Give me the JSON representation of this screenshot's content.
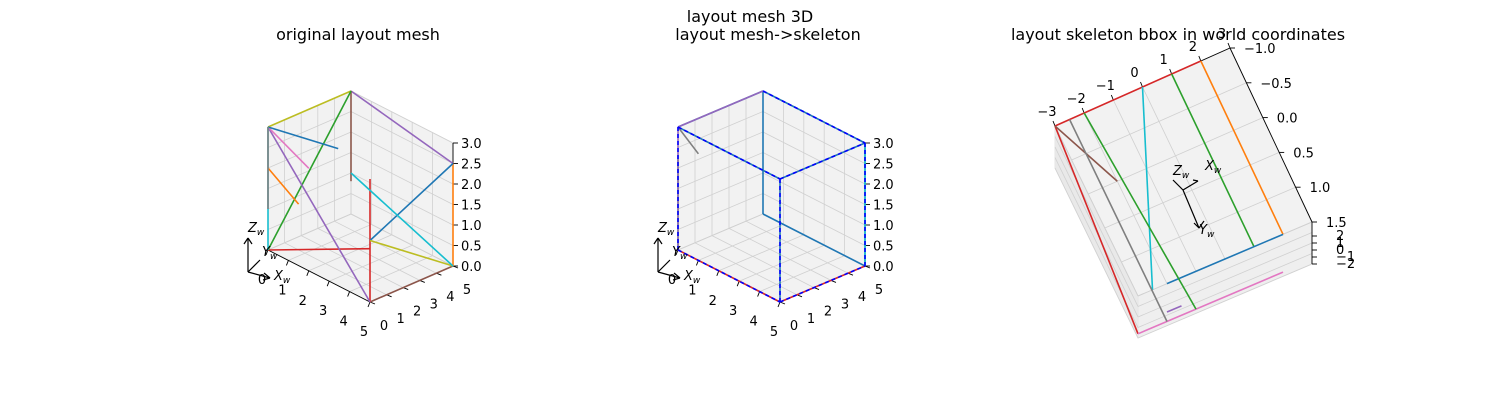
{
  "figure_title": "layout mesh 3D",
  "colors": {
    "blue": "#1f77b4",
    "orange": "#ff7f0e",
    "green": "#2ca02c",
    "red": "#d62728",
    "purple": "#9467bd",
    "brown": "#8c564b",
    "pink": "#e377c2",
    "gray": "#7f7f7f",
    "olive": "#bcbd22",
    "cyan": "#17becf",
    "dashed_blue": "#0000ff",
    "pane": "#f2f2f2"
  },
  "chart_data": [
    {
      "type": "wireframe-3d",
      "title": "original layout mesh",
      "xticks": [
        "0",
        "1",
        "2",
        "3",
        "4",
        "5"
      ],
      "yticks": [
        "0",
        "1",
        "2",
        "3",
        "4",
        "5"
      ],
      "zticks": [
        "0.0",
        "0.5",
        "1.0",
        "1.5",
        "2.0",
        "2.5",
        "3.0"
      ],
      "xlim": [
        0,
        5
      ],
      "ylim": [
        0,
        5
      ],
      "zlim": [
        0,
        3
      ],
      "frame_labels": [
        "Z_w",
        "Y_w",
        "X_w"
      ],
      "frame_label_text": {
        "z": "Z",
        "y": "Y",
        "x": "X",
        "sub": "w"
      },
      "segments": [
        {
          "color": "olive",
          "p": [
            [
              0,
              0,
              3
            ],
            [
              0,
              5,
              3
            ]
          ]
        },
        {
          "color": "purple",
          "p": [
            [
              0,
              5,
              3
            ],
            [
              5,
              5,
              2.5
            ]
          ]
        },
        {
          "color": "orange",
          "p": [
            [
              5,
              5,
              2.5
            ],
            [
              5,
              5,
              0
            ]
          ]
        },
        {
          "color": "brown",
          "p": [
            [
              5,
              5,
              0
            ],
            [
              5,
              0,
              0
            ]
          ]
        },
        {
          "color": "red",
          "p": [
            [
              5,
              0,
              0
            ],
            [
              5,
              0,
              3
            ]
          ]
        },
        {
          "color": "red",
          "p": [
            [
              0,
              0,
              0
            ],
            [
              5,
              0,
              1.3
            ]
          ]
        },
        {
          "color": "blue",
          "p": [
            [
              5,
              0,
              1.5
            ],
            [
              5,
              5,
              2.5
            ]
          ]
        },
        {
          "color": "brown",
          "p": [
            [
              0,
              5,
              3
            ],
            [
              0,
              5,
              0.8
            ]
          ]
        },
        {
          "color": "green",
          "p": [
            [
              0,
              0,
              0
            ],
            [
              0,
              5,
              3
            ]
          ]
        },
        {
          "color": "olive",
          "p": [
            [
              5,
              0,
              1.5
            ],
            [
              5,
              5,
              0
            ]
          ]
        },
        {
          "color": "cyan",
          "p": [
            [
              5,
              5,
              0
            ],
            [
              0,
              5,
              1.0
            ]
          ]
        },
        {
          "color": "purple",
          "p": [
            [
              5,
              0,
              0
            ],
            [
              0,
              0,
              3
            ]
          ]
        },
        {
          "color": "pink",
          "p": [
            [
              0,
              0,
              3
            ],
            [
              2,
              0,
              2.5
            ]
          ]
        },
        {
          "color": "blue",
          "p": [
            [
              0,
              0,
              3
            ],
            [
              1,
              3,
              2.2
            ]
          ]
        },
        {
          "color": "cyan",
          "p": [
            [
              0,
              0,
              3
            ],
            [
              0,
              0,
              0
            ]
          ]
        },
        {
          "color": "orange",
          "p": [
            [
              0,
              0,
              2
            ],
            [
              1.5,
              0,
              1.5
            ]
          ]
        },
        {
          "color": "gray",
          "p": [
            [
              0,
              0,
              3
            ],
            [
              0,
              0,
              1
            ]
          ]
        }
      ]
    },
    {
      "type": "wireframe-3d",
      "title": "layout mesh->skeleton",
      "xticks": [
        "0",
        "1",
        "2",
        "3",
        "4",
        "5"
      ],
      "yticks": [
        "0",
        "1",
        "2",
        "3",
        "4",
        "5"
      ],
      "zticks": [
        "0.0",
        "0.5",
        "1.0",
        "1.5",
        "2.0",
        "2.5",
        "3.0"
      ],
      "xlim": [
        0,
        5
      ],
      "ylim": [
        0,
        5
      ],
      "zlim": [
        0,
        3
      ],
      "frame_labels": [
        "Z_w",
        "Y_w",
        "X_w"
      ],
      "frame_label_text": {
        "z": "Z",
        "y": "Y",
        "x": "X",
        "sub": "w"
      },
      "segments": [
        {
          "color": "blue",
          "p": [
            [
              0,
              0,
              3
            ],
            [
              5,
              0,
              3
            ]
          ]
        },
        {
          "color": "blue",
          "p": [
            [
              0,
              0,
              3
            ],
            [
              0,
              5,
              3
            ]
          ]
        },
        {
          "color": "blue",
          "p": [
            [
              5,
              0,
              3
            ],
            [
              5,
              5,
              3
            ]
          ]
        },
        {
          "color": "blue",
          "p": [
            [
              0,
              5,
              3
            ],
            [
              5,
              5,
              3
            ]
          ]
        },
        {
          "color": "blue",
          "p": [
            [
              5,
              0,
              0
            ],
            [
              5,
              0,
              3
            ]
          ]
        },
        {
          "color": "blue",
          "p": [
            [
              5,
              5,
              0
            ],
            [
              5,
              5,
              3
            ]
          ]
        },
        {
          "color": "blue",
          "p": [
            [
              0,
              5,
              0
            ],
            [
              0,
              5,
              3
            ]
          ]
        },
        {
          "color": "blue",
          "p": [
            [
              0,
              5,
              0
            ],
            [
              5,
              5,
              0
            ]
          ]
        },
        {
          "color": "red",
          "p": [
            [
              0,
              0,
              0
            ],
            [
              5,
              0,
              0
            ]
          ]
        },
        {
          "color": "red",
          "p": [
            [
              5,
              0,
              0
            ],
            [
              5,
              5,
              0
            ]
          ]
        },
        {
          "color": "green",
          "p": [
            [
              0,
              0,
              0
            ],
            [
              0,
              0,
              2.3
            ]
          ]
        },
        {
          "color": "gray",
          "p": [
            [
              0,
              0,
              3
            ],
            [
              1.0,
              0,
              2.6
            ]
          ]
        },
        {
          "color": "purple",
          "p": [
            [
              0,
              0,
              0
            ],
            [
              0,
              0,
              3
            ]
          ]
        },
        {
          "color": "purple",
          "p": [
            [
              0,
              0,
              3
            ],
            [
              0,
              5,
              3
            ]
          ]
        },
        {
          "color": "cyan",
          "p": [
            [
              5,
              5,
              0
            ],
            [
              5,
              5,
              3
            ]
          ]
        },
        {
          "color": "dashed_blue",
          "dash": true,
          "p": [
            [
              0,
              0,
              0
            ],
            [
              5,
              0,
              0
            ]
          ]
        },
        {
          "color": "dashed_blue",
          "dash": true,
          "p": [
            [
              5,
              0,
              0
            ],
            [
              5,
              5,
              0
            ]
          ]
        },
        {
          "color": "dashed_blue",
          "dash": true,
          "p": [
            [
              0,
              0,
              3
            ],
            [
              5,
              0,
              3
            ]
          ]
        },
        {
          "color": "dashed_blue",
          "dash": true,
          "p": [
            [
              5,
              0,
              3
            ],
            [
              5,
              5,
              3
            ]
          ]
        },
        {
          "color": "dashed_blue",
          "dash": true,
          "p": [
            [
              0,
              5,
              3
            ],
            [
              5,
              5,
              3
            ]
          ]
        },
        {
          "color": "dashed_blue",
          "dash": true,
          "p": [
            [
              5,
              0,
              0
            ],
            [
              5,
              0,
              3
            ]
          ]
        },
        {
          "color": "dashed_blue",
          "dash": true,
          "p": [
            [
              5,
              5,
              0
            ],
            [
              5,
              5,
              3
            ]
          ]
        },
        {
          "color": "dashed_blue",
          "dash": true,
          "p": [
            [
              0,
              0,
              0
            ],
            [
              0,
              0,
              3
            ]
          ]
        }
      ]
    },
    {
      "type": "wireframe-3d",
      "title": "layout skeleton bbox in world coordinates",
      "xticks": [
        "−3",
        "−2",
        "−1",
        "0",
        "1",
        "2",
        "3"
      ],
      "yticks": [
        "−1.0",
        "−0.5",
        "0.0",
        "0.5",
        "1.0",
        "1.5"
      ],
      "zticks": [
        "2",
        "1",
        "0",
        "−1",
        "−2"
      ],
      "xlim": [
        -3,
        3
      ],
      "ylim": [
        -1,
        1.5
      ],
      "zlim": [
        -2,
        2
      ],
      "frame_labels": [
        "Z_w",
        "X_w",
        "Y_w"
      ],
      "frame_label_text": {
        "z": "Z",
        "y": "Y",
        "x": "X",
        "sub": "w"
      },
      "segments": [
        {
          "color": "red",
          "p": [
            [
              -3,
              -1,
              2
            ],
            [
              2,
              -1,
              2
            ]
          ]
        },
        {
          "color": "orange",
          "p": [
            [
              2,
              -1,
              2
            ],
            [
              2,
              1.5,
              2
            ]
          ]
        },
        {
          "color": "green",
          "p": [
            [
              1,
              -1,
              2
            ],
            [
              1,
              1.5,
              2
            ]
          ]
        },
        {
          "color": "cyan",
          "p": [
            [
              0,
              -1,
              2
            ],
            [
              -2.5,
              1.5,
              2
            ]
          ]
        },
        {
          "color": "blue",
          "p": [
            [
              2,
              1.5,
              2
            ],
            [
              -2,
              1.5,
              2
            ]
          ]
        },
        {
          "color": "red",
          "p": [
            [
              -3,
              -1,
              2
            ],
            [
              -3,
              1.5,
              -2
            ]
          ]
        },
        {
          "color": "pink",
          "p": [
            [
              -3,
              1.5,
              -2
            ],
            [
              2,
              1.5,
              -2
            ]
          ]
        },
        {
          "color": "brown",
          "p": [
            [
              -3,
              -1,
              2
            ],
            [
              -2,
              0,
              2
            ]
          ]
        },
        {
          "color": "gray",
          "p": [
            [
              -2.5,
              -1,
              2
            ],
            [
              -2,
              1.5,
              -2
            ]
          ]
        },
        {
          "color": "purple",
          "p": [
            [
              -2,
              1.5,
              -1
            ],
            [
              -1.5,
              1.5,
              -1
            ]
          ]
        },
        {
          "color": "green",
          "p": [
            [
              -2,
              -1,
              2
            ],
            [
              -1,
              1.5,
              -2
            ]
          ]
        }
      ]
    }
  ]
}
